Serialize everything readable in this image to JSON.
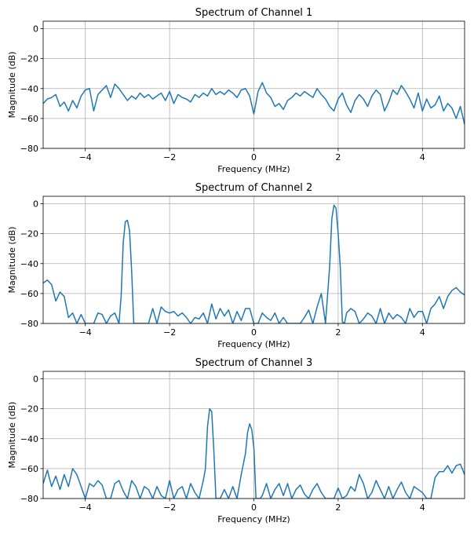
{
  "style": {
    "line_color": "#1f77b4",
    "grid_color": "#b0b0b0",
    "axes_color": "#000000"
  },
  "chart_data": [
    {
      "type": "line",
      "title": "Spectrum of Channel 1",
      "xlabel": "Frequency (MHz)",
      "ylabel": "Magnitude (dB)",
      "xlim": [
        -5,
        5
      ],
      "ylim": [
        -80,
        5
      ],
      "xticks": [
        -4,
        -2,
        0,
        2,
        4
      ],
      "xtick_labels": [
        "−4",
        "−2",
        "0",
        "2",
        "4"
      ],
      "yticks": [
        0,
        -20,
        -40,
        -60,
        -80
      ],
      "ytick_labels": [
        "0",
        "−20",
        "−40",
        "−60",
        "−80"
      ],
      "grid": true,
      "series": [
        {
          "x": [
            -5.0,
            -4.9,
            -4.8,
            -4.7,
            -4.6,
            -4.5,
            -4.4,
            -4.3,
            -4.2,
            -4.1,
            -4.0,
            -3.9,
            -3.8,
            -3.7,
            -3.6,
            -3.5,
            -3.4,
            -3.3,
            -3.2,
            -3.1,
            -3.0,
            -2.9,
            -2.8,
            -2.7,
            -2.6,
            -2.5,
            -2.4,
            -2.3,
            -2.2,
            -2.1,
            -2.0,
            -1.9,
            -1.8,
            -1.7,
            -1.6,
            -1.5,
            -1.4,
            -1.3,
            -1.2,
            -1.1,
            -1.0,
            -0.9,
            -0.8,
            -0.7,
            -0.6,
            -0.5,
            -0.4,
            -0.3,
            -0.2,
            -0.1,
            0.0,
            0.1,
            0.2,
            0.3,
            0.4,
            0.5,
            0.6,
            0.7,
            0.8,
            0.9,
            1.0,
            1.1,
            1.2,
            1.3,
            1.4,
            1.5,
            1.6,
            1.7,
            1.8,
            1.9,
            2.0,
            2.1,
            2.2,
            2.3,
            2.4,
            2.5,
            2.6,
            2.7,
            2.8,
            2.9,
            3.0,
            3.1,
            3.2,
            3.3,
            3.4,
            3.5,
            3.6,
            3.7,
            3.8,
            3.9,
            4.0,
            4.1,
            4.2,
            4.3,
            4.4,
            4.5,
            4.6,
            4.7,
            4.8,
            4.9,
            5.0
          ],
          "y": [
            -50,
            -47,
            -46,
            -44,
            -52,
            -49,
            -55,
            -48,
            -53,
            -45,
            -41,
            -40,
            -55,
            -44,
            -41,
            -38,
            -46,
            -37,
            -40,
            -44,
            -48,
            -45,
            -47,
            -43,
            -46,
            -44,
            -47,
            -45,
            -43,
            -48,
            -42,
            -50,
            -44,
            -46,
            -47,
            -49,
            -44,
            -46,
            -43,
            -45,
            -40,
            -44,
            -42,
            -44,
            -41,
            -43,
            -46,
            -41,
            -40,
            -45,
            -57,
            -42,
            -36,
            -43,
            -46,
            -52,
            -50,
            -54,
            -48,
            -46,
            -43,
            -45,
            -42,
            -44,
            -46,
            -40,
            -44,
            -47,
            -52,
            -55,
            -47,
            -43,
            -51,
            -56,
            -48,
            -44,
            -47,
            -52,
            -45,
            -41,
            -44,
            -55,
            -49,
            -41,
            -44,
            -38,
            -42,
            -47,
            -53,
            -43,
            -55,
            -47,
            -53,
            -51,
            -45,
            -55,
            -50,
            -53,
            -60,
            -52,
            -64
          ]
        }
      ]
    },
    {
      "type": "line",
      "title": "Spectrum of Channel 2",
      "xlabel": "Frequency (MHz)",
      "ylabel": "Magnitude (dB)",
      "xlim": [
        -5,
        5
      ],
      "ylim": [
        -80,
        5
      ],
      "xticks": [
        -4,
        -2,
        0,
        2,
        4
      ],
      "xtick_labels": [
        "−4",
        "−2",
        "0",
        "2",
        "4"
      ],
      "yticks": [
        0,
        -20,
        -40,
        -60,
        -80
      ],
      "ytick_labels": [
        "0",
        "−20",
        "−40",
        "−60",
        "−80"
      ],
      "grid": true,
      "series": [
        {
          "x": [
            -5.0,
            -4.9,
            -4.8,
            -4.7,
            -4.6,
            -4.5,
            -4.4,
            -4.3,
            -4.2,
            -4.1,
            -4.0,
            -3.9,
            -3.8,
            -3.7,
            -3.6,
            -3.5,
            -3.4,
            -3.3,
            -3.2,
            -3.15,
            -3.1,
            -3.05,
            -3.0,
            -2.95,
            -2.9,
            -2.85,
            -2.8,
            -2.7,
            -2.6,
            -2.5,
            -2.4,
            -2.3,
            -2.2,
            -2.1,
            -2.0,
            -1.9,
            -1.8,
            -1.7,
            -1.6,
            -1.5,
            -1.4,
            -1.3,
            -1.2,
            -1.1,
            -1.0,
            -0.9,
            -0.8,
            -0.7,
            -0.6,
            -0.5,
            -0.4,
            -0.3,
            -0.2,
            -0.1,
            0.0,
            0.1,
            0.2,
            0.3,
            0.4,
            0.5,
            0.6,
            0.7,
            0.8,
            0.9,
            1.0,
            1.1,
            1.2,
            1.3,
            1.4,
            1.5,
            1.6,
            1.7,
            1.8,
            1.85,
            1.9,
            1.95,
            2.0,
            2.05,
            2.1,
            2.15,
            2.2,
            2.3,
            2.4,
            2.5,
            2.6,
            2.7,
            2.8,
            2.9,
            3.0,
            3.1,
            3.2,
            3.3,
            3.4,
            3.5,
            3.6,
            3.7,
            3.8,
            3.9,
            4.0,
            4.1,
            4.2,
            4.3,
            4.4,
            4.5,
            4.6,
            4.7,
            4.8,
            4.9,
            5.0
          ],
          "y": [
            -53,
            -51,
            -54,
            -65,
            -59,
            -62,
            -76,
            -73,
            -80,
            -74,
            -80,
            -80,
            -80,
            -73,
            -74,
            -80,
            -75,
            -73,
            -80,
            -62,
            -26,
            -12,
            -11,
            -18,
            -45,
            -80,
            -80,
            -80,
            -80,
            -80,
            -70,
            -80,
            -69,
            -72,
            -73,
            -72,
            -75,
            -73,
            -76,
            -80,
            -76,
            -77,
            -73,
            -80,
            -67,
            -77,
            -70,
            -75,
            -71,
            -80,
            -72,
            -78,
            -70,
            -70,
            -80,
            -80,
            -73,
            -76,
            -78,
            -73,
            -80,
            -76,
            -80,
            -80,
            -80,
            -80,
            -76,
            -71,
            -80,
            -69,
            -60,
            -80,
            -41,
            -10,
            -1,
            -3,
            -20,
            -42,
            -79,
            -80,
            -73,
            -70,
            -72,
            -80,
            -77,
            -73,
            -75,
            -80,
            -70,
            -80,
            -73,
            -77,
            -74,
            -76,
            -80,
            -70,
            -76,
            -72,
            -72,
            -80,
            -70,
            -67,
            -62,
            -70,
            -62,
            -58,
            -56,
            -59,
            -61
          ]
        }
      ]
    },
    {
      "type": "line",
      "title": "Spectrum of Channel 3",
      "xlabel": "Frequency (MHz)",
      "ylabel": "Magnitude (dB)",
      "xlim": [
        -5,
        5
      ],
      "ylim": [
        -80,
        5
      ],
      "xticks": [
        -4,
        -2,
        0,
        2,
        4
      ],
      "xtick_labels": [
        "−4",
        "−2",
        "0",
        "2",
        "4"
      ],
      "yticks": [
        0,
        -20,
        -40,
        -60,
        -80
      ],
      "ytick_labels": [
        "0",
        "−20",
        "−40",
        "−60",
        "−80"
      ],
      "grid": true,
      "series": [
        {
          "x": [
            -5.0,
            -4.9,
            -4.8,
            -4.7,
            -4.6,
            -4.5,
            -4.4,
            -4.3,
            -4.2,
            -4.1,
            -4.0,
            -3.9,
            -3.8,
            -3.7,
            -3.6,
            -3.5,
            -3.4,
            -3.3,
            -3.2,
            -3.1,
            -3.0,
            -2.9,
            -2.8,
            -2.7,
            -2.6,
            -2.5,
            -2.4,
            -2.3,
            -2.2,
            -2.1,
            -2.0,
            -1.9,
            -1.8,
            -1.7,
            -1.6,
            -1.5,
            -1.4,
            -1.3,
            -1.2,
            -1.15,
            -1.1,
            -1.05,
            -1.0,
            -0.95,
            -0.9,
            -0.85,
            -0.8,
            -0.7,
            -0.6,
            -0.5,
            -0.4,
            -0.3,
            -0.2,
            -0.15,
            -0.1,
            -0.05,
            0.0,
            0.05,
            0.1,
            0.15,
            0.2,
            0.3,
            0.4,
            0.5,
            0.6,
            0.7,
            0.8,
            0.9,
            1.0,
            1.1,
            1.2,
            1.3,
            1.4,
            1.5,
            1.6,
            1.7,
            1.8,
            1.9,
            2.0,
            2.1,
            2.2,
            2.3,
            2.4,
            2.5,
            2.6,
            2.7,
            2.8,
            2.9,
            3.0,
            3.1,
            3.2,
            3.3,
            3.4,
            3.5,
            3.6,
            3.7,
            3.8,
            3.9,
            4.0,
            4.1,
            4.2,
            4.3,
            4.4,
            4.5,
            4.6,
            4.7,
            4.8,
            4.9,
            5.0
          ],
          "y": [
            -70,
            -61,
            -72,
            -65,
            -74,
            -64,
            -72,
            -60,
            -64,
            -72,
            -80,
            -70,
            -72,
            -68,
            -71,
            -80,
            -80,
            -70,
            -68,
            -75,
            -80,
            -68,
            -72,
            -80,
            -72,
            -74,
            -80,
            -72,
            -78,
            -80,
            -68,
            -80,
            -74,
            -72,
            -80,
            -70,
            -76,
            -80,
            -68,
            -60,
            -32,
            -20,
            -22,
            -48,
            -80,
            -80,
            -80,
            -74,
            -80,
            -72,
            -80,
            -64,
            -50,
            -36,
            -30,
            -34,
            -46,
            -80,
            -80,
            -80,
            -78,
            -70,
            -80,
            -74,
            -70,
            -78,
            -70,
            -80,
            -74,
            -71,
            -77,
            -80,
            -74,
            -70,
            -76,
            -80,
            -80,
            -80,
            -73,
            -80,
            -78,
            -72,
            -75,
            -64,
            -70,
            -80,
            -76,
            -68,
            -74,
            -80,
            -72,
            -80,
            -74,
            -69,
            -76,
            -80,
            -72,
            -74,
            -76,
            -80,
            -80,
            -66,
            -62,
            -62,
            -58,
            -63,
            -58,
            -57,
            -64
          ]
        }
      ]
    }
  ]
}
